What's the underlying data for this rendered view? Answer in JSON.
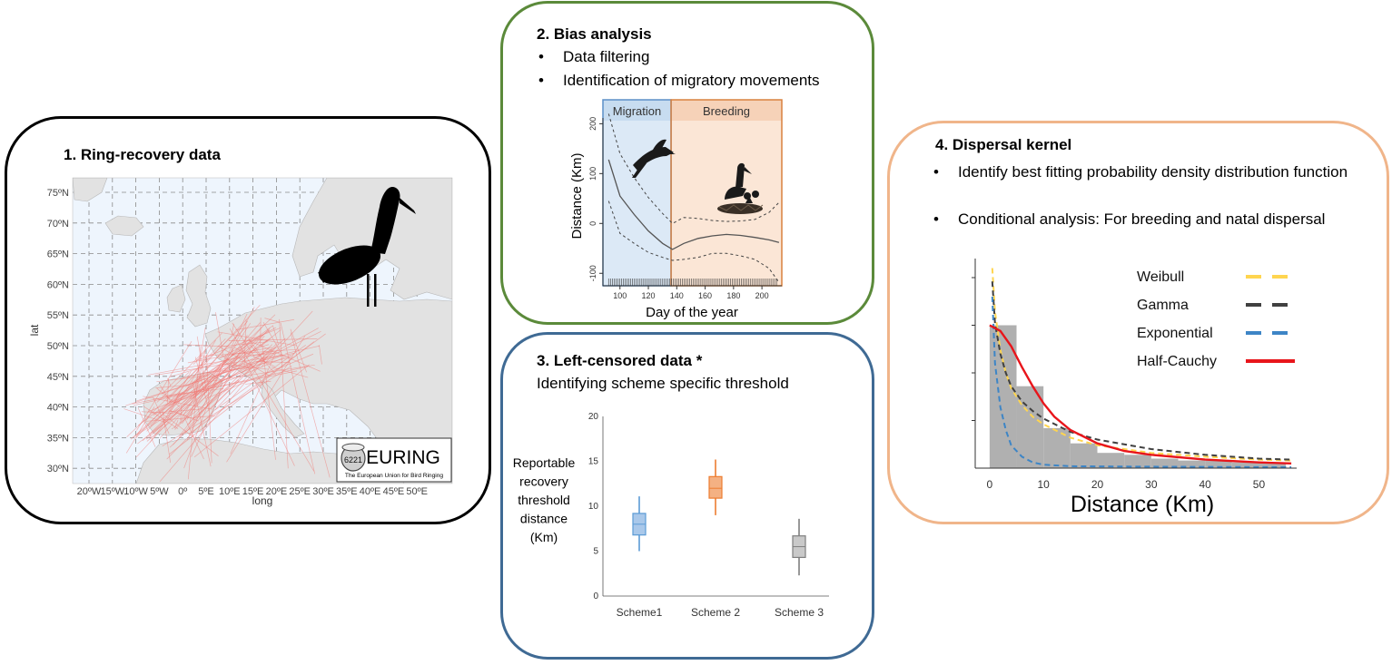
{
  "panel1": {
    "title": "1. Ring-recovery data",
    "map": {
      "lat_ticks": [
        "75ºN",
        "70ºN",
        "65ºN",
        "60ºN",
        "55ºN",
        "50ºN",
        "45ºN",
        "40ºN",
        "35ºN",
        "30ºN"
      ],
      "lon_ticks": [
        "20ºW",
        "15ºW",
        "10ºW",
        "5ºW",
        "0º",
        "5ºE",
        "10ºE",
        "15ºE",
        "20ºE",
        "25ºE",
        "30ºE",
        "35ºE",
        "40ºE",
        "45ºE",
        "50ºE"
      ],
      "x_label": "long",
      "y_label": "lat",
      "logo_text": "EURING",
      "logo_subtext": "The European Union for Bird Ringing",
      "logo_ring_number": "6221",
      "track_color": "#f07a74",
      "land_color": "#e2e2e2",
      "sea_color": "#eef5fd"
    }
  },
  "panel2": {
    "title": "2. Bias analysis",
    "bullets": [
      "Data filtering",
      "Identification of migratory movements"
    ],
    "chart_data": {
      "type": "line",
      "title": "",
      "xlabel": "Day of the year",
      "ylabel": "Distance (Km)",
      "xlim": [
        88,
        214
      ],
      "ylim": [
        -125,
        248
      ],
      "x_ticks": [
        100,
        120,
        140,
        160,
        180,
        200
      ],
      "y_ticks": [
        -100,
        0,
        100,
        200
      ],
      "phases": [
        {
          "name": "Migration",
          "from": 88,
          "to": 136,
          "color": "#dce9f6",
          "header_color": "#c7dcf0"
        },
        {
          "name": "Breeding",
          "from": 136,
          "to": 214,
          "color": "#fbe6d6",
          "header_color": "#f6d2b8"
        }
      ],
      "fit": [
        [
          92,
          128
        ],
        [
          100,
          55
        ],
        [
          110,
          18
        ],
        [
          120,
          -15
        ],
        [
          130,
          -40
        ],
        [
          137,
          -52
        ],
        [
          145,
          -40
        ],
        [
          155,
          -30
        ],
        [
          165,
          -25
        ],
        [
          175,
          -22
        ],
        [
          185,
          -24
        ],
        [
          195,
          -28
        ],
        [
          205,
          -33
        ],
        [
          212,
          -38
        ]
      ],
      "upper": [
        [
          92,
          220
        ],
        [
          100,
          140
        ],
        [
          110,
          92
        ],
        [
          120,
          52
        ],
        [
          130,
          20
        ],
        [
          137,
          0
        ],
        [
          145,
          12
        ],
        [
          155,
          10
        ],
        [
          165,
          6
        ],
        [
          175,
          4
        ],
        [
          185,
          5
        ],
        [
          195,
          8
        ],
        [
          205,
          22
        ],
        [
          212,
          42
        ]
      ],
      "lower": [
        [
          92,
          45
        ],
        [
          100,
          -20
        ],
        [
          110,
          -40
        ],
        [
          120,
          -58
        ],
        [
          130,
          -68
        ],
        [
          137,
          -74
        ],
        [
          145,
          -72
        ],
        [
          155,
          -68
        ],
        [
          165,
          -60
        ],
        [
          175,
          -60
        ],
        [
          185,
          -65
        ],
        [
          195,
          -72
        ],
        [
          205,
          -90
        ],
        [
          212,
          -118
        ]
      ]
    }
  },
  "panel3": {
    "title": "3. Left-censored data *",
    "subtitle": "Identifying scheme specific threshold",
    "chart_data": {
      "type": "box",
      "ylabel": "Reportable recovery threshold distance (Km)",
      "ylabel_lines": [
        "Reportable",
        "recovery",
        "threshold",
        "distance",
        "(Km)"
      ],
      "ylim": [
        0,
        20
      ],
      "y_ticks": [
        0,
        5,
        10,
        15,
        20
      ],
      "categories": [
        "Scheme1",
        "Scheme 2",
        "Scheme 3"
      ],
      "boxes": [
        {
          "name": "Scheme1",
          "whisker_low": 5,
          "q1": 6.8,
          "median": 8,
          "q3": 9.2,
          "whisker_high": 11.1,
          "color": "#5b9bd5",
          "fill": "#a9c8ea"
        },
        {
          "name": "Scheme 2",
          "whisker_low": 9,
          "q1": 10.9,
          "median": 12,
          "q3": 13.3,
          "whisker_high": 15.2,
          "color": "#ed7d31",
          "fill": "#f4b183"
        },
        {
          "name": "Scheme 3",
          "whisker_low": 2.3,
          "q1": 4.3,
          "median": 5.5,
          "q3": 6.7,
          "whisker_high": 8.6,
          "color": "#7f7f7f",
          "fill": "#c9c9c9"
        }
      ]
    }
  },
  "panel4": {
    "title": "4. Dispersal kernel",
    "bullets": [
      "Identify best fitting probability density distribution function",
      "Conditional analysis: For breeding and natal dispersal"
    ],
    "chart_data": {
      "type": "histogram",
      "xlabel": "Distance (Km)",
      "ylabel": "",
      "xlim": [
        -2,
        57
      ],
      "ylim": [
        0,
        1.1
      ],
      "x_ticks": [
        0,
        10,
        20,
        30,
        40,
        50
      ],
      "bins": [
        {
          "from": 0,
          "to": 5,
          "value": 0.75
        },
        {
          "from": 5,
          "to": 10,
          "value": 0.43
        },
        {
          "from": 10,
          "to": 15,
          "value": 0.21
        },
        {
          "from": 15,
          "to": 20,
          "value": 0.13
        },
        {
          "from": 20,
          "to": 25,
          "value": 0.08
        },
        {
          "from": 25,
          "to": 30,
          "value": 0.07
        },
        {
          "from": 30,
          "to": 35,
          "value": 0.05
        },
        {
          "from": 35,
          "to": 40,
          "value": 0.04
        },
        {
          "from": 40,
          "to": 45,
          "value": 0.04
        },
        {
          "from": 45,
          "to": 50,
          "value": 0.03
        },
        {
          "from": 50,
          "to": 55,
          "value": 0.03
        }
      ],
      "series": [
        {
          "name": "Weibull",
          "color": "#ffd54f",
          "dash": true,
          "points": [
            [
              0.5,
              1.05
            ],
            [
              1,
              0.82
            ],
            [
              2,
              0.62
            ],
            [
              3,
              0.5
            ],
            [
              4,
              0.42
            ],
            [
              6,
              0.33
            ],
            [
              8,
              0.27
            ],
            [
              10,
              0.23
            ],
            [
              15,
              0.16
            ],
            [
              20,
              0.12
            ],
            [
              30,
              0.08
            ],
            [
              40,
              0.06
            ],
            [
              50,
              0.045
            ],
            [
              56,
              0.04
            ]
          ]
        },
        {
          "name": "Gamma",
          "color": "#404040",
          "dash": true,
          "points": [
            [
              0.5,
              0.98
            ],
            [
              1,
              0.76
            ],
            [
              2,
              0.6
            ],
            [
              3,
              0.5
            ],
            [
              4,
              0.43
            ],
            [
              6,
              0.35
            ],
            [
              8,
              0.3
            ],
            [
              10,
              0.26
            ],
            [
              15,
              0.19
            ],
            [
              20,
              0.15
            ],
            [
              30,
              0.1
            ],
            [
              40,
              0.07
            ],
            [
              50,
              0.05
            ],
            [
              56,
              0.045
            ]
          ]
        },
        {
          "name": "Exponential",
          "color": "#3d85c6",
          "dash": true,
          "points": [
            [
              0.5,
              0.9
            ],
            [
              1,
              0.55
            ],
            [
              2,
              0.32
            ],
            [
              3,
              0.2
            ],
            [
              4,
              0.12
            ],
            [
              6,
              0.06
            ],
            [
              8,
              0.03
            ],
            [
              10,
              0.018
            ],
            [
              15,
              0.01
            ],
            [
              25,
              0.008
            ],
            [
              56,
              0.005
            ]
          ]
        },
        {
          "name": "Half-Cauchy",
          "color": "#e8151b",
          "dash": false,
          "points": [
            [
              0,
              0.75
            ],
            [
              2,
              0.72
            ],
            [
              4,
              0.64
            ],
            [
              6,
              0.53
            ],
            [
              8,
              0.43
            ],
            [
              10,
              0.34
            ],
            [
              12,
              0.27
            ],
            [
              15,
              0.2
            ],
            [
              20,
              0.13
            ],
            [
              25,
              0.09
            ],
            [
              30,
              0.07
            ],
            [
              40,
              0.045
            ],
            [
              50,
              0.03
            ],
            [
              56,
              0.025
            ]
          ]
        }
      ]
    }
  }
}
